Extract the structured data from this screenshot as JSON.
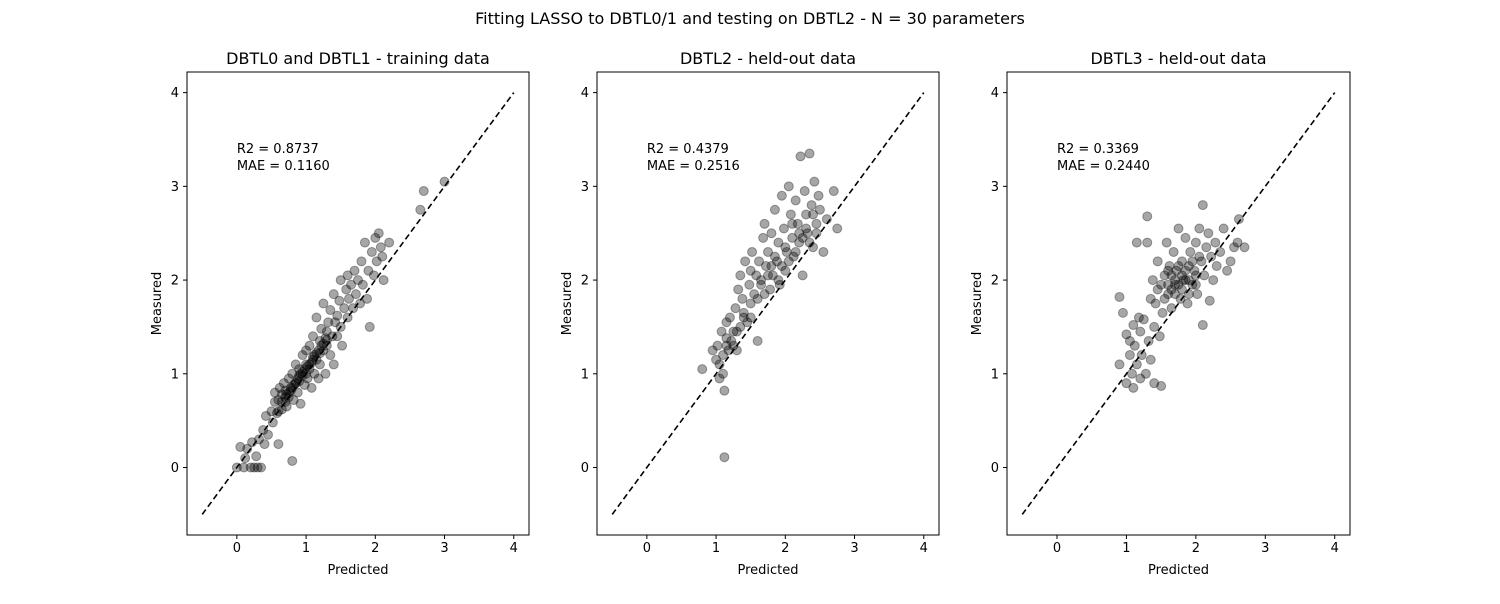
{
  "figure": {
    "suptitle": "Fitting LASSO to DBTL0/1 and testing on DBTL2 - N = 30 parameters"
  },
  "chart_data": [
    {
      "type": "scatter",
      "title": "DBTL0 and DBTL1 - training data",
      "xlabel": "Predicted",
      "ylabel": "Measured",
      "xlim": [
        -0.72,
        4.22
      ],
      "ylim": [
        -0.72,
        4.22
      ],
      "xticks": [
        0,
        1,
        2,
        3,
        4
      ],
      "yticks": [
        0,
        1,
        2,
        3,
        4
      ],
      "grid": false,
      "marker_color": "#000000",
      "marker_alpha": 0.35,
      "identity_line": {
        "from": -0.5,
        "to": 4.0,
        "style": "dashed",
        "color": "#000000"
      },
      "annotation": [
        "R2 = 0.8737",
        "MAE = 0.1160"
      ],
      "points": [
        [
          0.0,
          0.0
        ],
        [
          0.05,
          0.22
        ],
        [
          0.1,
          0.0
        ],
        [
          0.12,
          0.1
        ],
        [
          0.15,
          0.2
        ],
        [
          0.2,
          0.0
        ],
        [
          0.22,
          0.27
        ],
        [
          0.25,
          0.0
        ],
        [
          0.28,
          0.12
        ],
        [
          0.3,
          0.0
        ],
        [
          0.32,
          0.3
        ],
        [
          0.35,
          0.0
        ],
        [
          0.38,
          0.4
        ],
        [
          0.4,
          0.25
        ],
        [
          0.42,
          0.55
        ],
        [
          0.45,
          0.35
        ],
        [
          0.5,
          0.6
        ],
        [
          0.52,
          0.48
        ],
        [
          0.55,
          0.7
        ],
        [
          0.55,
          0.8
        ],
        [
          0.58,
          0.58
        ],
        [
          0.6,
          0.72
        ],
        [
          0.6,
          0.25
        ],
        [
          0.62,
          0.85
        ],
        [
          0.65,
          0.62
        ],
        [
          0.65,
          0.78
        ],
        [
          0.68,
          0.9
        ],
        [
          0.7,
          0.7
        ],
        [
          0.7,
          0.82
        ],
        [
          0.72,
          0.65
        ],
        [
          0.75,
          0.95
        ],
        [
          0.75,
          0.75
        ],
        [
          0.78,
          0.85
        ],
        [
          0.8,
          0.07
        ],
        [
          0.8,
          1.0
        ],
        [
          0.82,
          0.72
        ],
        [
          0.85,
          0.9
        ],
        [
          0.85,
          1.1
        ],
        [
          0.88,
          0.8
        ],
        [
          0.9,
          1.05
        ],
        [
          0.9,
          0.92
        ],
        [
          0.92,
          0.68
        ],
        [
          0.95,
          1.2
        ],
        [
          0.95,
          0.98
        ],
        [
          0.98,
          0.88
        ],
        [
          1.0,
          1.1
        ],
        [
          1.0,
          1.25
        ],
        [
          1.02,
          0.95
        ],
        [
          1.05,
          1.3
        ],
        [
          1.05,
          1.05
        ],
        [
          1.08,
          0.85
        ],
        [
          1.1,
          1.15
        ],
        [
          1.1,
          1.4
        ],
        [
          1.12,
          1.0
        ],
        [
          1.15,
          1.22
        ],
        [
          1.15,
          1.6
        ],
        [
          1.18,
          0.95
        ],
        [
          1.2,
          1.35
        ],
        [
          1.2,
          1.1
        ],
        [
          1.22,
          1.48
        ],
        [
          1.25,
          1.25
        ],
        [
          1.25,
          1.75
        ],
        [
          1.28,
          1.0
        ],
        [
          1.3,
          1.45
        ],
        [
          1.3,
          1.3
        ],
        [
          1.32,
          1.55
        ],
        [
          1.35,
          1.2
        ],
        [
          1.35,
          1.68
        ],
        [
          1.38,
          1.4
        ],
        [
          1.4,
          1.85
        ],
        [
          1.4,
          1.1
        ],
        [
          1.42,
          1.55
        ],
        [
          1.45,
          1.62
        ],
        [
          1.45,
          1.4
        ],
        [
          1.48,
          1.78
        ],
        [
          1.5,
          2.0
        ],
        [
          1.5,
          1.5
        ],
        [
          1.52,
          1.3
        ],
        [
          1.55,
          1.7
        ],
        [
          1.58,
          1.9
        ],
        [
          1.6,
          1.6
        ],
        [
          1.6,
          2.05
        ],
        [
          1.62,
          1.8
        ],
        [
          1.65,
          1.95
        ],
        [
          1.68,
          1.7
        ],
        [
          1.7,
          2.1
        ],
        [
          1.72,
          1.85
        ],
        [
          1.75,
          2.0
        ],
        [
          1.78,
          1.75
        ],
        [
          1.8,
          2.2
        ],
        [
          1.82,
          1.95
        ],
        [
          1.85,
          2.4
        ],
        [
          1.88,
          1.8
        ],
        [
          1.9,
          2.1
        ],
        [
          1.92,
          1.5
        ],
        [
          1.95,
          2.3
        ],
        [
          1.98,
          2.05
        ],
        [
          2.0,
          2.45
        ],
        [
          2.02,
          2.2
        ],
        [
          2.05,
          2.5
        ],
        [
          2.08,
          2.35
        ],
        [
          2.1,
          2.25
        ],
        [
          2.12,
          2.0
        ],
        [
          2.2,
          2.4
        ],
        [
          2.7,
          2.95
        ],
        [
          2.65,
          2.75
        ],
        [
          3.0,
          3.05
        ],
        [
          0.6,
          0.6
        ],
        [
          0.65,
          0.7
        ],
        [
          0.7,
          0.75
        ],
        [
          0.72,
          0.78
        ],
        [
          0.75,
          0.8
        ],
        [
          0.78,
          0.82
        ],
        [
          0.8,
          0.85
        ],
        [
          0.82,
          0.88
        ],
        [
          0.85,
          0.9
        ],
        [
          0.88,
          0.95
        ],
        [
          0.9,
          0.98
        ],
        [
          0.92,
          1.0
        ],
        [
          0.95,
          1.02
        ],
        [
          0.98,
          1.05
        ],
        [
          1.0,
          1.0
        ],
        [
          1.02,
          1.08
        ],
        [
          1.05,
          1.1
        ],
        [
          1.08,
          1.12
        ],
        [
          1.1,
          1.18
        ],
        [
          1.12,
          1.2
        ],
        [
          1.15,
          1.15
        ],
        [
          1.18,
          1.25
        ],
        [
          1.2,
          1.22
        ],
        [
          1.22,
          1.3
        ],
        [
          1.25,
          1.32
        ],
        [
          1.28,
          1.38
        ],
        [
          1.3,
          1.36
        ]
      ]
    },
    {
      "type": "scatter",
      "title": "DBTL2 - held-out data",
      "xlabel": "Predicted",
      "ylabel": "Measured",
      "xlim": [
        -0.72,
        4.22
      ],
      "ylim": [
        -0.72,
        4.22
      ],
      "xticks": [
        0,
        1,
        2,
        3,
        4
      ],
      "yticks": [
        0,
        1,
        2,
        3,
        4
      ],
      "grid": false,
      "marker_color": "#000000",
      "marker_alpha": 0.35,
      "identity_line": {
        "from": -0.5,
        "to": 4.0,
        "style": "dashed",
        "color": "#000000"
      },
      "annotation": [
        "R2 = 0.4379",
        "MAE = 0.2516"
      ],
      "points": [
        [
          0.8,
          1.05
        ],
        [
          0.95,
          1.25
        ],
        [
          1.0,
          1.15
        ],
        [
          1.02,
          1.3
        ],
        [
          1.05,
          0.95
        ],
        [
          1.08,
          1.45
        ],
        [
          1.1,
          1.2
        ],
        [
          1.1,
          1.0
        ],
        [
          1.12,
          0.82
        ],
        [
          1.12,
          0.11
        ],
        [
          1.15,
          1.55
        ],
        [
          1.15,
          1.38
        ],
        [
          1.18,
          1.25
        ],
        [
          1.2,
          1.6
        ],
        [
          1.22,
          1.35
        ],
        [
          1.25,
          1.45
        ],
        [
          1.28,
          1.7
        ],
        [
          1.3,
          1.25
        ],
        [
          1.32,
          1.9
        ],
        [
          1.35,
          1.5
        ],
        [
          1.35,
          2.05
        ],
        [
          1.38,
          1.8
        ],
        [
          1.4,
          1.65
        ],
        [
          1.42,
          2.2
        ],
        [
          1.45,
          1.55
        ],
        [
          1.48,
          1.95
        ],
        [
          1.5,
          2.1
        ],
        [
          1.5,
          1.75
        ],
        [
          1.52,
          2.3
        ],
        [
          1.55,
          1.85
        ],
        [
          1.58,
          2.05
        ],
        [
          1.6,
          1.35
        ],
        [
          1.62,
          2.2
        ],
        [
          1.65,
          1.95
        ],
        [
          1.68,
          2.45
        ],
        [
          1.7,
          2.6
        ],
        [
          1.72,
          2.15
        ],
        [
          1.75,
          2.3
        ],
        [
          1.78,
          1.9
        ],
        [
          1.8,
          2.5
        ],
        [
          1.82,
          2.05
        ],
        [
          1.85,
          2.75
        ],
        [
          1.88,
          2.2
        ],
        [
          1.9,
          2.4
        ],
        [
          1.92,
          1.95
        ],
        [
          1.95,
          2.9
        ],
        [
          1.98,
          2.55
        ],
        [
          2.0,
          2.1
        ],
        [
          2.02,
          2.3
        ],
        [
          2.05,
          3.0
        ],
        [
          2.08,
          2.7
        ],
        [
          2.1,
          2.45
        ],
        [
          2.12,
          2.25
        ],
        [
          2.15,
          2.85
        ],
        [
          2.18,
          2.6
        ],
        [
          2.2,
          2.4
        ],
        [
          2.22,
          3.32
        ],
        [
          2.25,
          2.05
        ],
        [
          2.28,
          2.95
        ],
        [
          2.3,
          2.7
        ],
        [
          2.32,
          2.5
        ],
        [
          2.35,
          3.35
        ],
        [
          2.38,
          2.8
        ],
        [
          2.4,
          2.35
        ],
        [
          2.42,
          3.05
        ],
        [
          2.45,
          2.6
        ],
        [
          2.48,
          2.9
        ],
        [
          2.5,
          2.75
        ],
        [
          2.55,
          2.3
        ],
        [
          2.6,
          2.65
        ],
        [
          2.7,
          2.95
        ],
        [
          2.75,
          2.55
        ],
        [
          1.05,
          1.1
        ],
        [
          1.15,
          1.3
        ],
        [
          1.25,
          1.3
        ],
        [
          1.3,
          1.45
        ],
        [
          1.4,
          1.6
        ],
        [
          1.5,
          1.6
        ],
        [
          1.6,
          1.8
        ],
        [
          1.65,
          2.0
        ],
        [
          1.7,
          1.85
        ],
        [
          1.75,
          2.05
        ],
        [
          1.8,
          2.15
        ],
        [
          1.85,
          2.25
        ],
        [
          1.9,
          2.0
        ],
        [
          1.95,
          2.15
        ],
        [
          2.0,
          2.35
        ],
        [
          2.05,
          2.2
        ],
        [
          2.1,
          2.6
        ],
        [
          2.15,
          2.3
        ],
        [
          2.2,
          2.5
        ],
        [
          2.25,
          2.45
        ],
        [
          2.3,
          2.55
        ],
        [
          2.35,
          2.4
        ],
        [
          2.4,
          2.7
        ],
        [
          2.45,
          2.5
        ]
      ]
    },
    {
      "type": "scatter",
      "title": "DBTL3 - held-out data",
      "xlabel": "Predicted",
      "ylabel": "Measured",
      "xlim": [
        -0.72,
        4.22
      ],
      "ylim": [
        -0.72,
        4.22
      ],
      "xticks": [
        0,
        1,
        2,
        3,
        4
      ],
      "yticks": [
        0,
        1,
        2,
        3,
        4
      ],
      "grid": false,
      "marker_color": "#000000",
      "marker_alpha": 0.35,
      "identity_line": {
        "from": -0.5,
        "to": 4.0,
        "style": "dashed",
        "color": "#000000"
      },
      "annotation": [
        "R2 = 0.3369",
        "MAE = 0.2440"
      ],
      "points": [
        [
          0.9,
          1.1
        ],
        [
          0.9,
          1.82
        ],
        [
          0.95,
          1.65
        ],
        [
          1.0,
          1.42
        ],
        [
          1.0,
          0.9
        ],
        [
          1.05,
          1.2
        ],
        [
          1.05,
          1.35
        ],
        [
          1.08,
          1.0
        ],
        [
          1.1,
          1.52
        ],
        [
          1.1,
          0.85
        ],
        [
          1.12,
          1.3
        ],
        [
          1.15,
          2.4
        ],
        [
          1.15,
          1.1
        ],
        [
          1.18,
          1.6
        ],
        [
          1.2,
          0.95
        ],
        [
          1.2,
          1.45
        ],
        [
          1.22,
          1.2
        ],
        [
          1.25,
          1.58
        ],
        [
          1.28,
          1.0
        ],
        [
          1.3,
          2.4
        ],
        [
          1.3,
          2.68
        ],
        [
          1.32,
          1.35
        ],
        [
          1.35,
          1.8
        ],
        [
          1.35,
          1.15
        ],
        [
          1.38,
          2.0
        ],
        [
          1.4,
          1.5
        ],
        [
          1.4,
          0.9
        ],
        [
          1.42,
          1.75
        ],
        [
          1.45,
          2.2
        ],
        [
          1.48,
          1.4
        ],
        [
          1.5,
          1.95
        ],
        [
          1.5,
          0.87
        ],
        [
          1.52,
          1.65
        ],
        [
          1.55,
          2.05
        ],
        [
          1.58,
          2.4
        ],
        [
          1.6,
          1.85
        ],
        [
          1.62,
          2.15
        ],
        [
          1.65,
          1.7
        ],
        [
          1.68,
          2.3
        ],
        [
          1.7,
          1.95
        ],
        [
          1.72,
          2.1
        ],
        [
          1.75,
          2.55
        ],
        [
          1.78,
          1.8
        ],
        [
          1.8,
          2.2
        ],
        [
          1.82,
          2.0
        ],
        [
          1.85,
          2.45
        ],
        [
          1.88,
          1.75
        ],
        [
          1.9,
          2.15
        ],
        [
          1.92,
          2.3
        ],
        [
          1.95,
          1.95
        ],
        [
          1.98,
          2.1
        ],
        [
          2.0,
          2.4
        ],
        [
          2.02,
          1.85
        ],
        [
          2.05,
          2.55
        ],
        [
          2.08,
          2.2
        ],
        [
          2.1,
          2.8
        ],
        [
          2.1,
          1.52
        ],
        [
          2.12,
          2.05
        ],
        [
          2.15,
          2.35
        ],
        [
          2.18,
          2.5
        ],
        [
          2.2,
          1.78
        ],
        [
          2.22,
          2.25
        ],
        [
          2.25,
          2.0
        ],
        [
          2.28,
          2.4
        ],
        [
          2.3,
          2.15
        ],
        [
          2.35,
          2.3
        ],
        [
          2.4,
          2.55
        ],
        [
          2.45,
          2.1
        ],
        [
          2.5,
          2.2
        ],
        [
          2.55,
          2.35
        ],
        [
          2.6,
          2.4
        ],
        [
          2.62,
          2.65
        ],
        [
          2.7,
          2.35
        ],
        [
          1.6,
          1.95
        ],
        [
          1.65,
          2.05
        ],
        [
          1.7,
          2.0
        ],
        [
          1.75,
          2.15
        ],
        [
          1.8,
          1.9
        ],
        [
          1.85,
          2.1
        ],
        [
          1.9,
          2.0
        ],
        [
          1.95,
          2.2
        ],
        [
          2.0,
          2.05
        ],
        [
          2.05,
          2.25
        ],
        [
          1.55,
          1.8
        ],
        [
          1.6,
          2.1
        ],
        [
          1.7,
          1.85
        ],
        [
          1.8,
          2.05
        ],
        [
          1.9,
          1.85
        ],
        [
          2.0,
          1.95
        ],
        [
          1.45,
          1.9
        ],
        [
          1.65,
          1.9
        ],
        [
          1.75,
          1.95
        ],
        [
          1.85,
          2.0
        ]
      ]
    }
  ]
}
